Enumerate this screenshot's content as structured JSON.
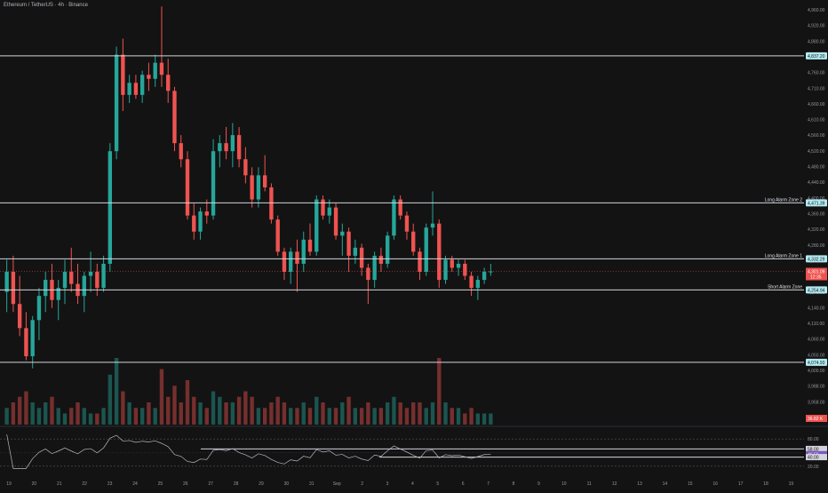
{
  "header": {
    "title": "Ethereum / TetherUS · 4h · Binance"
  },
  "colors": {
    "bg": "#131313",
    "up": "#26a69a",
    "down": "#ef5350",
    "line": "#d1d4dc",
    "rsi": "#b7b7c2",
    "rsi_band": "#7e57c2"
  },
  "chart_data": [
    {
      "type": "candlestick",
      "title": "",
      "x_labels": [
        "19",
        "20",
        "21",
        "22",
        "23",
        "24",
        "25",
        "26",
        "27",
        "28",
        "29",
        "30",
        "31",
        "Sep",
        "2",
        "3",
        "4",
        "5",
        "6",
        "7",
        "8",
        "9",
        "10",
        "11",
        "12",
        "13",
        "14",
        "15",
        "16",
        "17",
        "18",
        "19"
      ],
      "y_ticks": [
        "4,960.00",
        "4,920.00",
        "4,880.00",
        "4,810.00",
        "4,760.00",
        "4,710.00",
        "4,660.00",
        "4,610.00",
        "4,560.00",
        "4,520.00",
        "4,480.00",
        "4,440.00",
        "4,400.00",
        "4,360.00",
        "4,320.00",
        "4,280.00",
        "4,240.00",
        "4,200.00",
        "4,170.00",
        "4,140.00",
        "4,110.00",
        "4,060.00",
        "4,050.00",
        "4,000.00",
        "3,988.00",
        "3,958.00",
        "3,928.00"
      ],
      "ylim": [
        3920,
        4965
      ],
      "levels": [
        {
          "value": 4837.2,
          "label": "",
          "price_tag": "4,837.20"
        },
        {
          "value": 4471.39,
          "label": "Long Alarm Zone 2",
          "price_tag": "4,471.39"
        },
        {
          "value": 4332.29,
          "label": "Long Alarm Zone 1",
          "price_tag": "4,332.29"
        },
        {
          "value": 4254.94,
          "label": "Short Alarm Zone",
          "price_tag": "4,254.94"
        },
        {
          "value": 4074.93,
          "label": "",
          "price_tag": "4,074.93"
        }
      ],
      "current_price": {
        "value": 4301.09,
        "price_tag": "4,301.09",
        "countdown": "12:35"
      },
      "volume_tag": "36.82 K",
      "ohlc": [
        [
          4250,
          4330,
          4200,
          4300
        ],
        [
          4300,
          4340,
          4200,
          4220
        ],
        [
          4220,
          4290,
          4140,
          4160
        ],
        [
          4160,
          4200,
          4080,
          4090
        ],
        [
          4090,
          4190,
          4060,
          4180
        ],
        [
          4180,
          4260,
          4130,
          4240
        ],
        [
          4240,
          4300,
          4200,
          4280
        ],
        [
          4280,
          4320,
          4210,
          4230
        ],
        [
          4230,
          4280,
          4180,
          4260
        ],
        [
          4260,
          4330,
          4220,
          4300
        ],
        [
          4300,
          4360,
          4250,
          4270
        ],
        [
          4270,
          4320,
          4220,
          4240
        ],
        [
          4240,
          4300,
          4200,
          4290
        ],
        [
          4290,
          4350,
          4250,
          4300
        ],
        [
          4300,
          4320,
          4240,
          4260
        ],
        [
          4260,
          4340,
          4250,
          4320
        ],
        [
          4320,
          4620,
          4300,
          4600
        ],
        [
          4600,
          4860,
          4580,
          4840
        ],
        [
          4840,
          4880,
          4700,
          4740
        ],
        [
          4740,
          4790,
          4720,
          4770
        ],
        [
          4770,
          4790,
          4730,
          4740
        ],
        [
          4740,
          4800,
          4720,
          4790
        ],
        [
          4790,
          4820,
          4750,
          4780
        ],
        [
          4780,
          4840,
          4760,
          4820
        ],
        [
          4820,
          4960,
          4760,
          4790
        ],
        [
          4790,
          4830,
          4720,
          4750
        ],
        [
          4750,
          4760,
          4600,
          4620
        ],
        [
          4620,
          4640,
          4560,
          4580
        ],
        [
          4580,
          4600,
          4430,
          4440
        ],
        [
          4440,
          4470,
          4380,
          4400
        ],
        [
          4400,
          4460,
          4380,
          4450
        ],
        [
          4450,
          4480,
          4420,
          4440
        ],
        [
          4440,
          4630,
          4430,
          4600
        ],
        [
          4600,
          4640,
          4560,
          4620
        ],
        [
          4620,
          4660,
          4580,
          4600
        ],
        [
          4600,
          4670,
          4560,
          4640
        ],
        [
          4640,
          4660,
          4560,
          4580
        ],
        [
          4580,
          4610,
          4520,
          4540
        ],
        [
          4540,
          4560,
          4460,
          4480
        ],
        [
          4480,
          4560,
          4460,
          4540
        ],
        [
          4540,
          4590,
          4500,
          4510
        ],
        [
          4510,
          4520,
          4420,
          4430
        ],
        [
          4430,
          4440,
          4340,
          4350
        ],
        [
          4350,
          4360,
          4280,
          4300
        ],
        [
          4300,
          4360,
          4270,
          4350
        ],
        [
          4350,
          4380,
          4250,
          4320
        ],
        [
          4320,
          4400,
          4300,
          4380
        ],
        [
          4380,
          4420,
          4340,
          4350
        ],
        [
          4350,
          4490,
          4340,
          4480
        ],
        [
          4480,
          4490,
          4430,
          4440
        ],
        [
          4440,
          4480,
          4420,
          4460
        ],
        [
          4460,
          4470,
          4380,
          4390
        ],
        [
          4390,
          4420,
          4340,
          4400
        ],
        [
          4400,
          4410,
          4300,
          4340
        ],
        [
          4340,
          4380,
          4320,
          4360
        ],
        [
          4360,
          4370,
          4290,
          4310
        ],
        [
          4310,
          4320,
          4220,
          4280
        ],
        [
          4280,
          4350,
          4260,
          4340
        ],
        [
          4340,
          4360,
          4300,
          4320
        ],
        [
          4320,
          4400,
          4310,
          4390
        ],
        [
          4390,
          4490,
          4380,
          4480
        ],
        [
          4480,
          4490,
          4430,
          4440
        ],
        [
          4440,
          4450,
          4380,
          4400
        ],
        [
          4400,
          4420,
          4340,
          4350
        ],
        [
          4350,
          4360,
          4280,
          4300
        ],
        [
          4300,
          4420,
          4290,
          4410
        ],
        [
          4410,
          4500,
          4390,
          4420
        ],
        [
          4420,
          4430,
          4260,
          4280
        ],
        [
          4280,
          4340,
          4270,
          4330
        ],
        [
          4330,
          4340,
          4300,
          4310
        ],
        [
          4310,
          4330,
          4290,
          4320
        ],
        [
          4320,
          4330,
          4280,
          4290
        ],
        [
          4290,
          4300,
          4240,
          4260
        ],
        [
          4260,
          4290,
          4230,
          4280
        ],
        [
          4280,
          4310,
          4270,
          4300
        ],
        [
          4300,
          4320,
          4290,
          4301
        ]
      ],
      "volume": [
        3,
        4,
        5,
        6,
        4,
        3,
        4,
        5,
        3,
        2,
        3,
        4,
        3,
        2,
        2,
        3,
        9,
        12,
        6,
        4,
        3,
        3,
        4,
        3,
        10,
        5,
        7,
        4,
        8,
        5,
        4,
        3,
        6,
        5,
        4,
        4,
        5,
        6,
        5,
        3,
        3,
        4,
        5,
        4,
        3,
        3,
        4,
        3,
        5,
        4,
        3,
        3,
        4,
        5,
        3,
        3,
        4,
        3,
        3,
        4,
        5,
        4,
        3,
        4,
        4,
        3,
        4,
        12,
        4,
        3,
        3,
        2,
        3,
        2,
        2,
        2
      ],
      "rsi": {
        "levels": [
          58.0,
          40.0
        ],
        "value_tag": "46.56",
        "y_ticks": [
          "80.00",
          "58.00",
          "46.56",
          "40.00",
          "20.00"
        ]
      }
    }
  ]
}
